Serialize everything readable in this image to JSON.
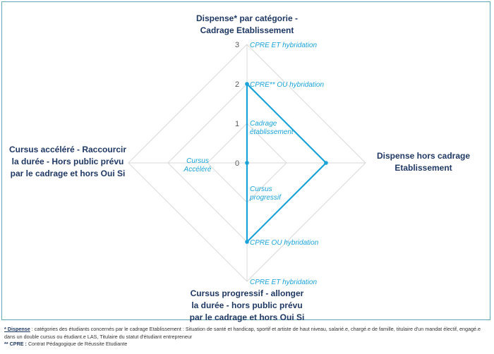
{
  "chart_data": {
    "type": "radar",
    "title": "",
    "axes": [
      "Dispense* par catégorie - Cadrage Etablissement",
      "Dispense hors cadrage Etablissement",
      "Cursus progressif - allonger la durée - hors public prévu par le cadrage et hors Oui Si",
      "Cursus accéléré - Raccourcir la durée - Hors public prévu par le cadrage et hors Oui Si"
    ],
    "axis_labels": {
      "top": [
        "Dispense* par catégorie -",
        "Cadrage Etablissement"
      ],
      "right": [
        "Dispense hors cadrage",
        "Etablissement"
      ],
      "bottom": [
        "Cursus progressif - allonger",
        "la durée - hors public prévu",
        "par le cadrage et hors Oui Si"
      ],
      "left": [
        "Cursus accéléré - Raccourcir",
        "la durée - Hors public prévu",
        "par le cadrage et hors Oui Si"
      ]
    },
    "ticks": [
      "0",
      "1",
      "2",
      "3"
    ],
    "range": [
      0,
      3
    ],
    "series": [
      {
        "values": [
          2,
          2,
          2,
          0
        ]
      }
    ],
    "annotations": [
      {
        "text": "CPRE ET hybridation",
        "axis": 0,
        "level": 3
      },
      {
        "text": "CPRE** OU hybridation",
        "axis": 0,
        "level": 2
      },
      {
        "text": "Cadrage\nétablissement",
        "axis": 0,
        "level": 1
      },
      {
        "text": "Cursus\nAccéléré",
        "axis": 3,
        "level": 0
      },
      {
        "text": "Cursus\nprogressif",
        "axis": 2,
        "level": 1
      },
      {
        "text": "CPRE OU hybridation",
        "axis": 2,
        "level": 2
      },
      {
        "text": "CPRE ET hybridation",
        "axis": 2,
        "level": 3
      }
    ],
    "colors": {
      "series": "#1aa3d9",
      "grid": "#d9d9d9",
      "annotation": "#1aa3d9",
      "label": "#1f3864"
    }
  },
  "footnotes": [
    {
      "key": "* Dispense",
      "text": " : catégories des étudiants concernés par le cadrage Etablissement : Situation de santé et handicap, sportif et artiste de haut niveau, salarié.e, chargé.e de famille, titulaire d'un mandat électif, engagé.e dans un double cursus ou étudiant.e LAS, Titulaire du statut d'étudiant entrepreneur"
    },
    {
      "key": "** CPRE :",
      "text": " Contrat Pédagogique de Réussite Etudiante"
    }
  ]
}
